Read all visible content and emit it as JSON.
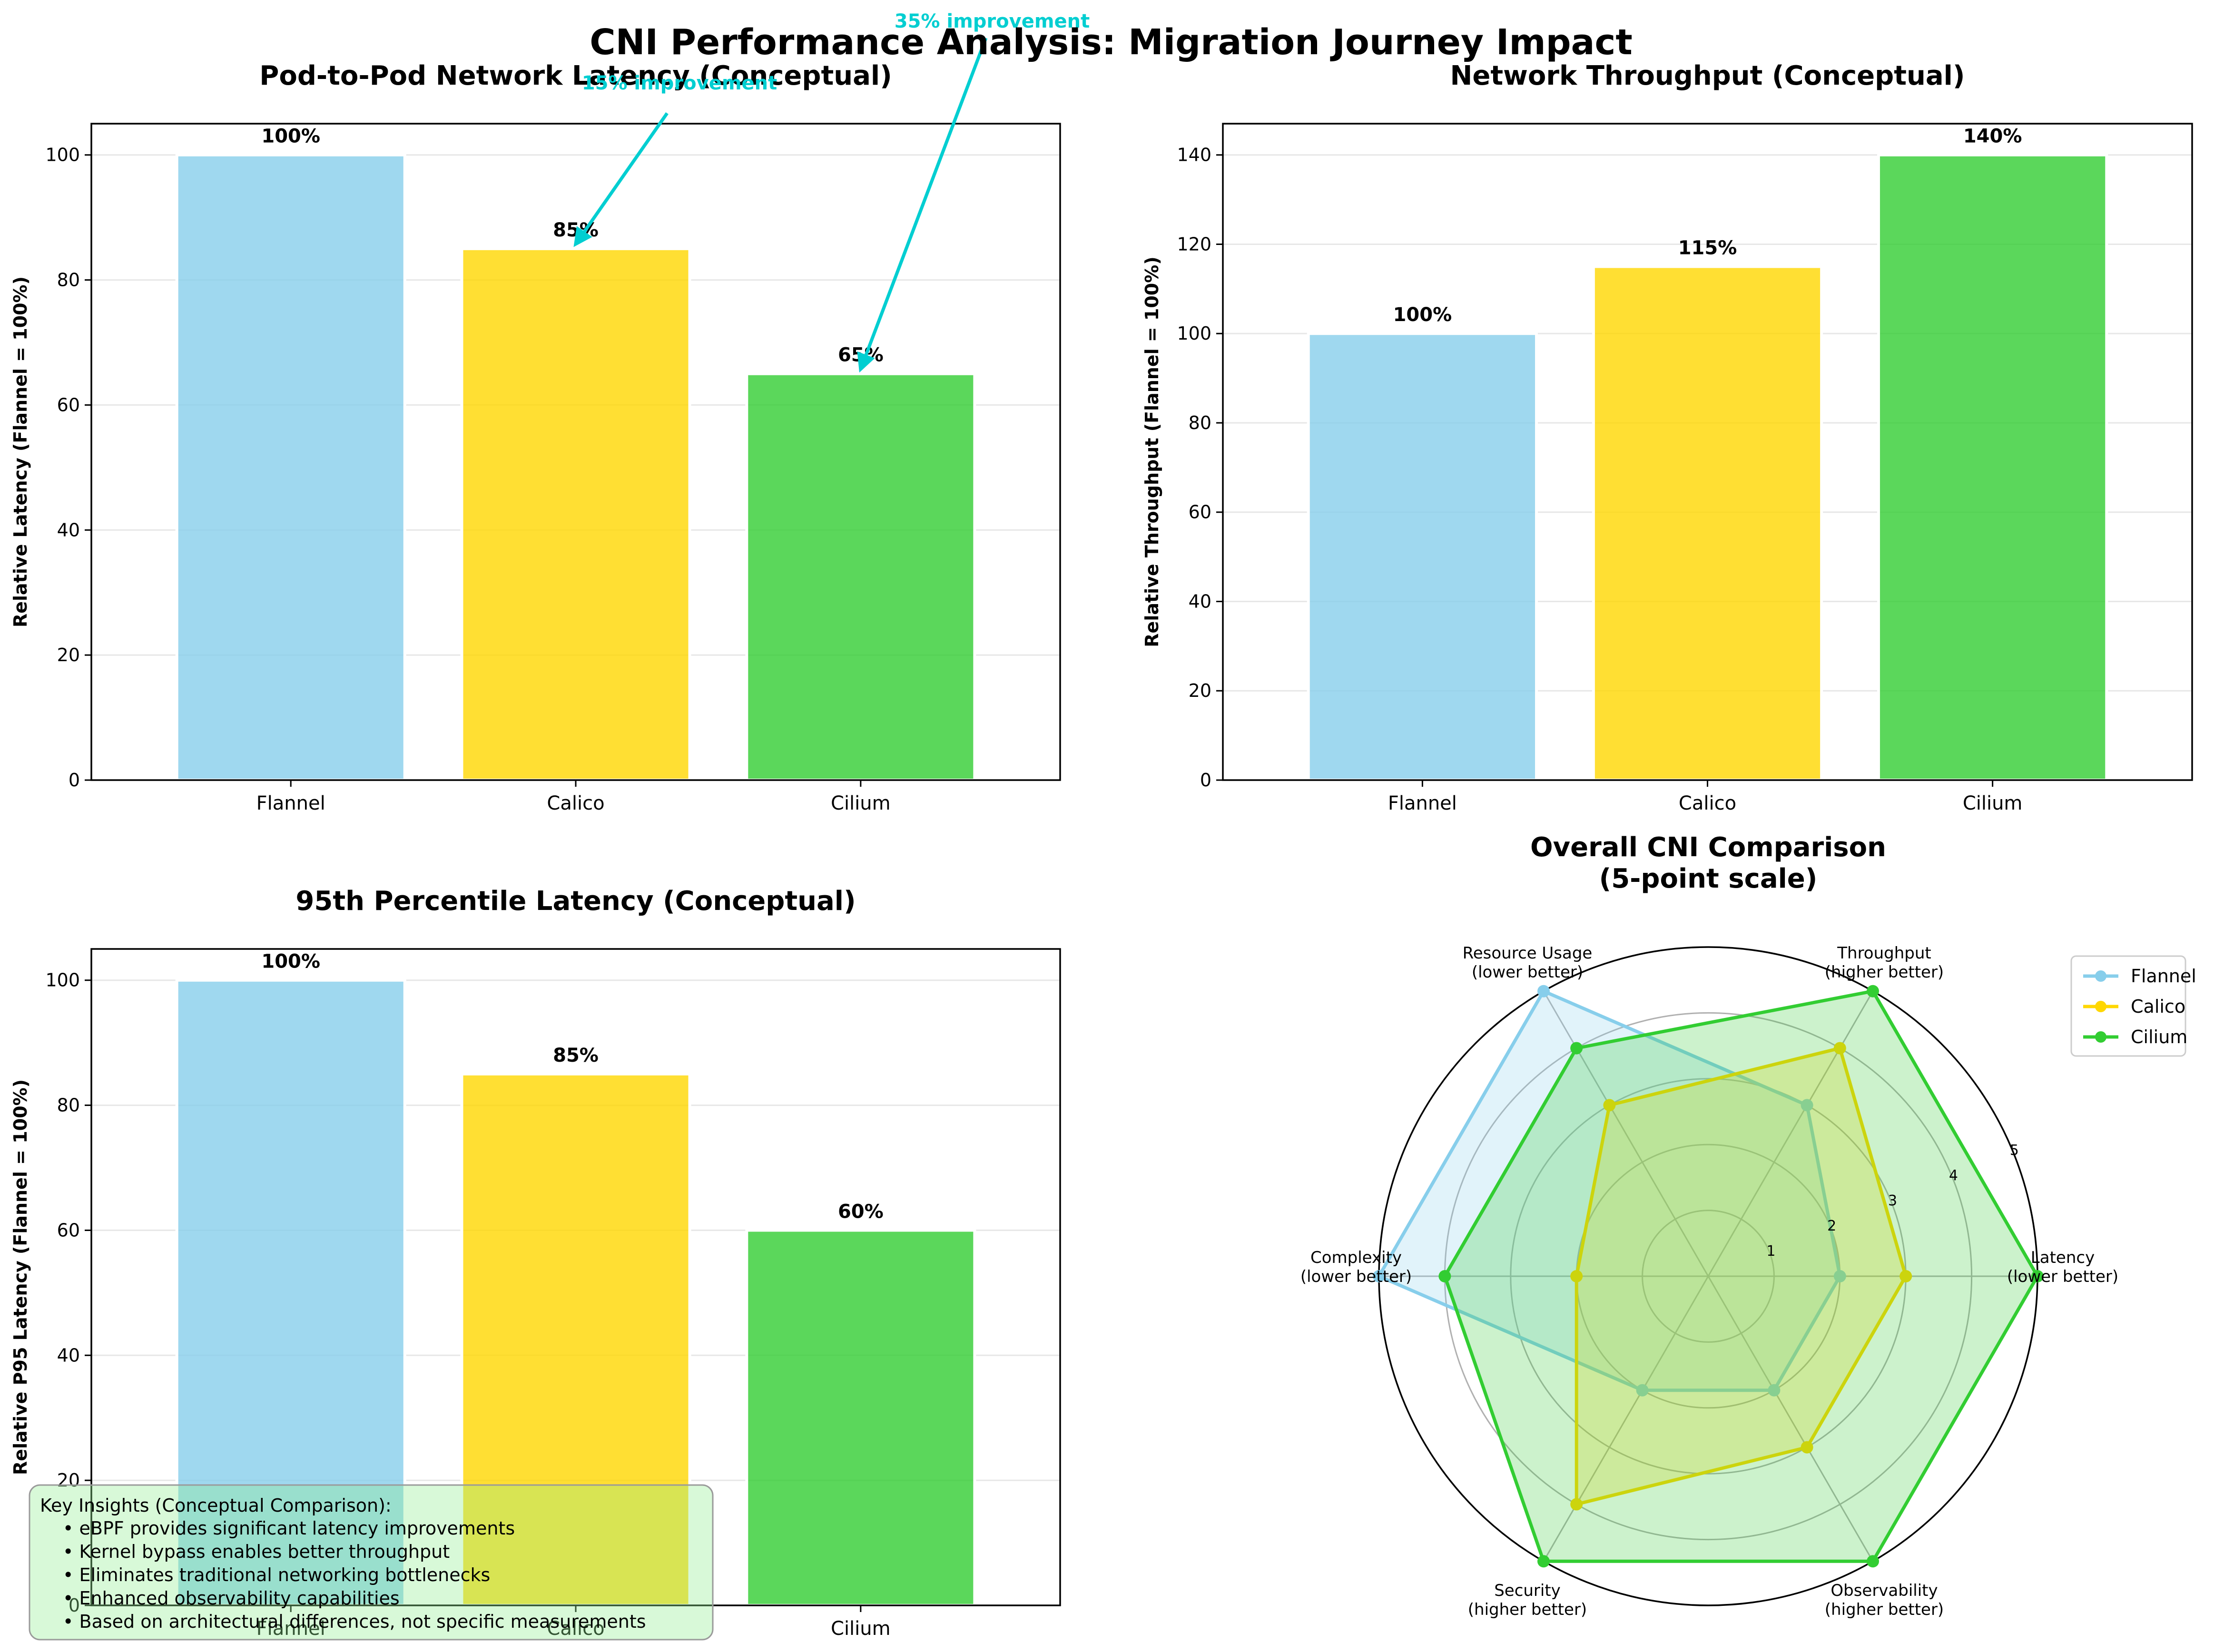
{
  "figure": {
    "title": "CNI Performance Analysis: Migration Journey Impact"
  },
  "colors": {
    "flannel": "#87CEEB",
    "calico": "#FFD700",
    "cilium": "#32CD32",
    "annotation": "#00CED1",
    "insights_bg": "#90EE90"
  },
  "chart_data": [
    {
      "type": "bar",
      "title": "Pod-to-Pod Network Latency (Conceptual)",
      "xlabel": "",
      "ylabel": "Relative Latency (Flannel = 100%)",
      "categories": [
        "Flannel",
        "Calico",
        "Cilium"
      ],
      "values": [
        100,
        85,
        65
      ],
      "value_labels": [
        "100%",
        "85%",
        "65%"
      ],
      "ylim": [
        0,
        105
      ],
      "yticks": [
        0,
        20,
        40,
        60,
        80,
        100
      ],
      "grid": "y",
      "annotations": [
        {
          "text": "15% improvement",
          "points_to": "Calico"
        },
        {
          "text": "35% improvement",
          "points_to": "Cilium"
        }
      ]
    },
    {
      "type": "bar",
      "title": "Network Throughput (Conceptual)",
      "xlabel": "",
      "ylabel": "Relative Throughput (Flannel = 100%)",
      "categories": [
        "Flannel",
        "Calico",
        "Cilium"
      ],
      "values": [
        100,
        115,
        140
      ],
      "value_labels": [
        "100%",
        "115%",
        "140%"
      ],
      "ylim": [
        0,
        147
      ],
      "yticks": [
        0,
        20,
        40,
        60,
        80,
        100,
        120,
        140
      ],
      "grid": "y"
    },
    {
      "type": "bar",
      "title": "95th Percentile Latency (Conceptual)",
      "xlabel": "",
      "ylabel": "Relative P95 Latency (Flannel = 100%)",
      "categories": [
        "Flannel",
        "Calico",
        "Cilium"
      ],
      "values": [
        100,
        85,
        60
      ],
      "value_labels": [
        "100%",
        "85%",
        "60%"
      ],
      "ylim": [
        0,
        105
      ],
      "yticks": [
        0,
        20,
        40,
        60,
        80,
        100
      ],
      "grid": "y"
    },
    {
      "type": "radar",
      "title": "Overall CNI Comparison\n(5-point scale)",
      "axes": [
        "Latency\n(lower better)",
        "Throughput\n(higher better)",
        "Resource Usage\n(lower better)",
        "Complexity\n(lower better)",
        "Security\n(higher better)",
        "Observability\n(higher better)"
      ],
      "rlim": [
        0,
        5
      ],
      "rticks": [
        1,
        2,
        3,
        4,
        5
      ],
      "series": [
        {
          "name": "Flannel",
          "values": [
            2,
            3,
            5,
            5,
            2,
            2
          ]
        },
        {
          "name": "Calico",
          "values": [
            3,
            4,
            3,
            2,
            4,
            3
          ]
        },
        {
          "name": "Cilium",
          "values": [
            5,
            5,
            4,
            4,
            5,
            5
          ]
        }
      ],
      "legend": "top-right"
    }
  ],
  "insights": {
    "title": "Key Insights (Conceptual Comparison):",
    "items": [
      "• eBPF provides significant latency improvements",
      "• Kernel bypass enables better throughput",
      "• Eliminates traditional networking bottlenecks",
      "• Enhanced observability capabilities",
      "• Based on architectural differences, not specific measurements"
    ]
  }
}
